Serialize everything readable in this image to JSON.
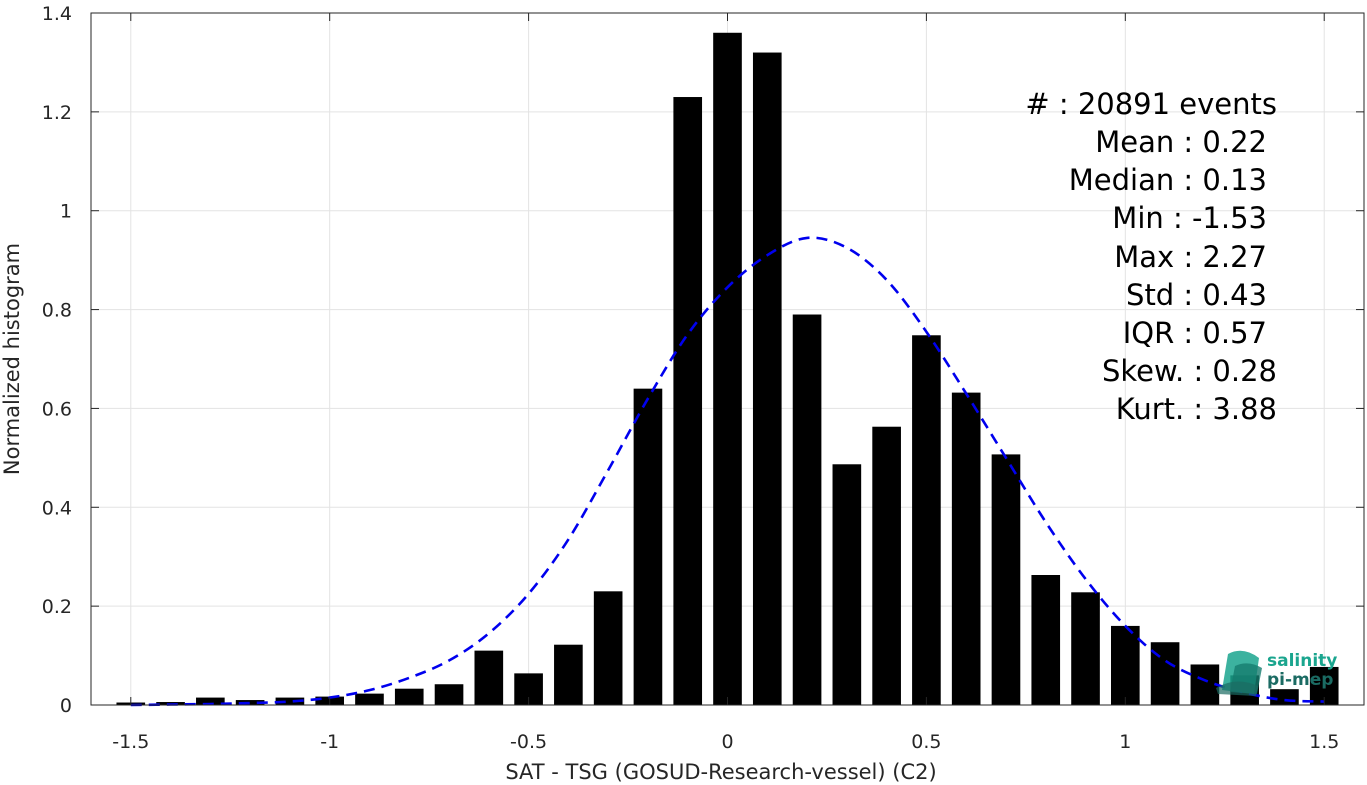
{
  "chart_data": {
    "type": "bar",
    "xlabel": "SAT - TSG (GOSUD-Research-vessel) (C2)",
    "ylabel": "Normalized histogram",
    "xlim": [
      -1.6,
      1.6
    ],
    "ylim": [
      0,
      1.4
    ],
    "xticks": [
      -1.5,
      -1,
      -0.5,
      0,
      0.5,
      1,
      1.5
    ],
    "xtick_labels": [
      "-1.5",
      "-1",
      "-0.5",
      "0",
      "0.5",
      "1",
      "1.5"
    ],
    "yticks": [
      0,
      0.2,
      0.4,
      0.6,
      0.8,
      1,
      1.2,
      1.4
    ],
    "ytick_labels": [
      "0",
      "0.2",
      "0.4",
      "0.6",
      "0.8",
      "1",
      "1.2",
      "1.4"
    ],
    "grid": true,
    "bar_color": "#000000",
    "bars": {
      "x": [
        -1.5,
        -1.4,
        -1.3,
        -1.2,
        -1.1,
        -1.0,
        -0.9,
        -0.8,
        -0.7,
        -0.6,
        -0.5,
        -0.4,
        -0.3,
        -0.2,
        -0.1,
        0.0,
        0.1,
        0.2,
        0.3,
        0.4,
        0.5,
        0.6,
        0.7,
        0.8,
        0.9,
        1.0,
        1.1,
        1.2,
        1.3,
        1.4,
        1.5
      ],
      "values": [
        0.005,
        0.006,
        0.015,
        0.01,
        0.015,
        0.017,
        0.023,
        0.033,
        0.042,
        0.11,
        0.064,
        0.122,
        0.23,
        0.64,
        1.23,
        1.36,
        1.32,
        0.79,
        0.487,
        0.563,
        0.748,
        0.632,
        0.507,
        0.263,
        0.228,
        0.16,
        0.127,
        0.082,
        0.06,
        0.032,
        0.077
      ]
    },
    "fit_curve": {
      "style": "dashed",
      "color": "#0000ee",
      "x": [
        -1.5,
        -1.4,
        -1.3,
        -1.2,
        -1.1,
        -1.0,
        -0.9,
        -0.8,
        -0.7,
        -0.6,
        -0.5,
        -0.4,
        -0.3,
        -0.2,
        -0.1,
        0.0,
        0.1,
        0.2,
        0.3,
        0.4,
        0.5,
        0.6,
        0.7,
        0.8,
        0.9,
        1.0,
        1.1,
        1.2,
        1.3,
        1.4,
        1.5
      ],
      "values": [
        0.0,
        0.001,
        0.002,
        0.004,
        0.007,
        0.015,
        0.03,
        0.055,
        0.09,
        0.145,
        0.225,
        0.335,
        0.475,
        0.62,
        0.75,
        0.845,
        0.91,
        0.945,
        0.925,
        0.86,
        0.755,
        0.63,
        0.5,
        0.37,
        0.255,
        0.16,
        0.09,
        0.05,
        0.025,
        0.01,
        0.007
      ]
    }
  },
  "stats": [
    {
      "label": "#  : 20891 events"
    },
    {
      "label": "Mean : 0.22"
    },
    {
      "label": "Median : 0.13"
    },
    {
      "label": "Min : -1.53"
    },
    {
      "label": "Max : 2.27"
    },
    {
      "label": "Std : 0.43"
    },
    {
      "label": "IQR : 0.57"
    },
    {
      "label": "Skew. : 0.28"
    },
    {
      "label": "Kurt. : 3.88"
    }
  ],
  "logo": {
    "line1": "salinity",
    "line2": "pi-mep",
    "color1": "#1aa58e",
    "color2": "#1b6b63"
  }
}
